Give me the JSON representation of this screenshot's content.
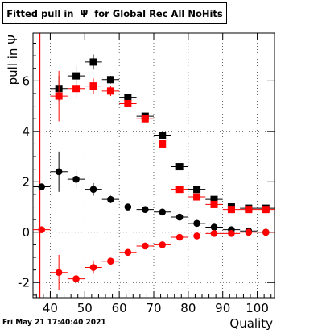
{
  "title": "Fitted pull in  Ψ  for Global Rec All NoHits",
  "timestamp": "Fri May 21 17:40:40 2021",
  "chart_data": {
    "type": "scatter",
    "title": "Fitted pull in  Ψ  for Global Rec All NoHits",
    "xlabel": "Quality",
    "ylabel": "pull in  Ψ",
    "xlim": [
      35,
      105
    ],
    "ylim": [
      -2.6,
      7.9
    ],
    "grid": true,
    "x_ticks": [
      40,
      50,
      60,
      70,
      80,
      90,
      100
    ],
    "y_ticks": [
      -2,
      0,
      2,
      4,
      6
    ],
    "reference_line_x": 37,
    "x_error": 2.5,
    "series": [
      {
        "marker": "square",
        "color": "#000000",
        "points": [
          {
            "x": 42.5,
            "y": 5.7,
            "ey": 0.5
          },
          {
            "x": 47.5,
            "y": 6.2,
            "ey": 0.4
          },
          {
            "x": 52.5,
            "y": 6.75,
            "ey": 0.3
          },
          {
            "x": 57.5,
            "y": 6.05,
            "ey": 0.15
          },
          {
            "x": 62.5,
            "y": 5.35,
            "ey": 0.1
          },
          {
            "x": 67.5,
            "y": 4.6,
            "ey": 0.1
          },
          {
            "x": 72.5,
            "y": 3.85,
            "ey": 0.1
          },
          {
            "x": 77.5,
            "y": 2.6,
            "ey": 0.05
          },
          {
            "x": 82.5,
            "y": 1.7,
            "ey": 0.05
          },
          {
            "x": 87.5,
            "y": 1.3,
            "ey": 0.05
          },
          {
            "x": 92.5,
            "y": 1.0,
            "ey": 0.05
          },
          {
            "x": 97.5,
            "y": 0.95,
            "ey": 0.05
          },
          {
            "x": 102.5,
            "y": 0.95,
            "ey": 0.05
          }
        ]
      },
      {
        "marker": "square",
        "color": "#ff0000",
        "points": [
          {
            "x": 42.5,
            "y": 5.4,
            "ey": 1.0
          },
          {
            "x": 47.5,
            "y": 5.7,
            "ey": 0.4
          },
          {
            "x": 52.5,
            "y": 5.8,
            "ey": 0.3
          },
          {
            "x": 57.5,
            "y": 5.6,
            "ey": 0.2
          },
          {
            "x": 62.5,
            "y": 5.1,
            "ey": 0.1
          },
          {
            "x": 67.5,
            "y": 4.5,
            "ey": 0.1
          },
          {
            "x": 72.5,
            "y": 3.5,
            "ey": 0.1
          },
          {
            "x": 77.5,
            "y": 1.7,
            "ey": 0.05
          },
          {
            "x": 82.5,
            "y": 1.4,
            "ey": 0.05
          },
          {
            "x": 87.5,
            "y": 1.1,
            "ey": 0.05
          },
          {
            "x": 92.5,
            "y": 0.9,
            "ey": 0.05
          },
          {
            "x": 97.5,
            "y": 0.9,
            "ey": 0.05
          },
          {
            "x": 102.5,
            "y": 0.9,
            "ey": 0.05
          }
        ]
      },
      {
        "marker": "circle",
        "color": "#000000",
        "points": [
          {
            "x": 37.5,
            "y": 1.8,
            "ey": 0.1
          },
          {
            "x": 42.5,
            "y": 2.4,
            "ey": 0.8
          },
          {
            "x": 47.5,
            "y": 2.1,
            "ey": 0.35
          },
          {
            "x": 52.5,
            "y": 1.7,
            "ey": 0.25
          },
          {
            "x": 57.5,
            "y": 1.3,
            "ey": 0.15
          },
          {
            "x": 62.5,
            "y": 1.0,
            "ey": 0.08
          },
          {
            "x": 67.5,
            "y": 0.9,
            "ey": 0.05
          },
          {
            "x": 72.5,
            "y": 0.8,
            "ey": 0.05
          },
          {
            "x": 77.5,
            "y": 0.6,
            "ey": 0.05
          },
          {
            "x": 82.5,
            "y": 0.35,
            "ey": 0.05
          },
          {
            "x": 87.5,
            "y": 0.2,
            "ey": 0.05
          },
          {
            "x": 92.5,
            "y": 0.1,
            "ey": 0.05
          },
          {
            "x": 97.5,
            "y": 0.05,
            "ey": 0.05
          },
          {
            "x": 102.5,
            "y": 0.0,
            "ey": 0.05
          }
        ]
      },
      {
        "marker": "circle",
        "color": "#ff0000",
        "points": [
          {
            "x": 37.5,
            "y": 0.1,
            "ey": 0.1
          },
          {
            "x": 42.5,
            "y": -1.6,
            "ey": 0.7
          },
          {
            "x": 47.5,
            "y": -1.85,
            "ey": 0.3
          },
          {
            "x": 52.5,
            "y": -1.4,
            "ey": 0.25
          },
          {
            "x": 57.5,
            "y": -1.15,
            "ey": 0.1
          },
          {
            "x": 62.5,
            "y": -0.8,
            "ey": 0.08
          },
          {
            "x": 67.5,
            "y": -0.55,
            "ey": 0.05
          },
          {
            "x": 72.5,
            "y": -0.5,
            "ey": 0.05
          },
          {
            "x": 77.5,
            "y": -0.2,
            "ey": 0.05
          },
          {
            "x": 82.5,
            "y": -0.15,
            "ey": 0.05
          },
          {
            "x": 87.5,
            "y": -0.05,
            "ey": 0.05
          },
          {
            "x": 92.5,
            "y": -0.05,
            "ey": 0.05
          },
          {
            "x": 97.5,
            "y": 0.0,
            "ey": 0.05
          },
          {
            "x": 102.5,
            "y": 0.0,
            "ey": 0.05
          }
        ]
      }
    ]
  }
}
